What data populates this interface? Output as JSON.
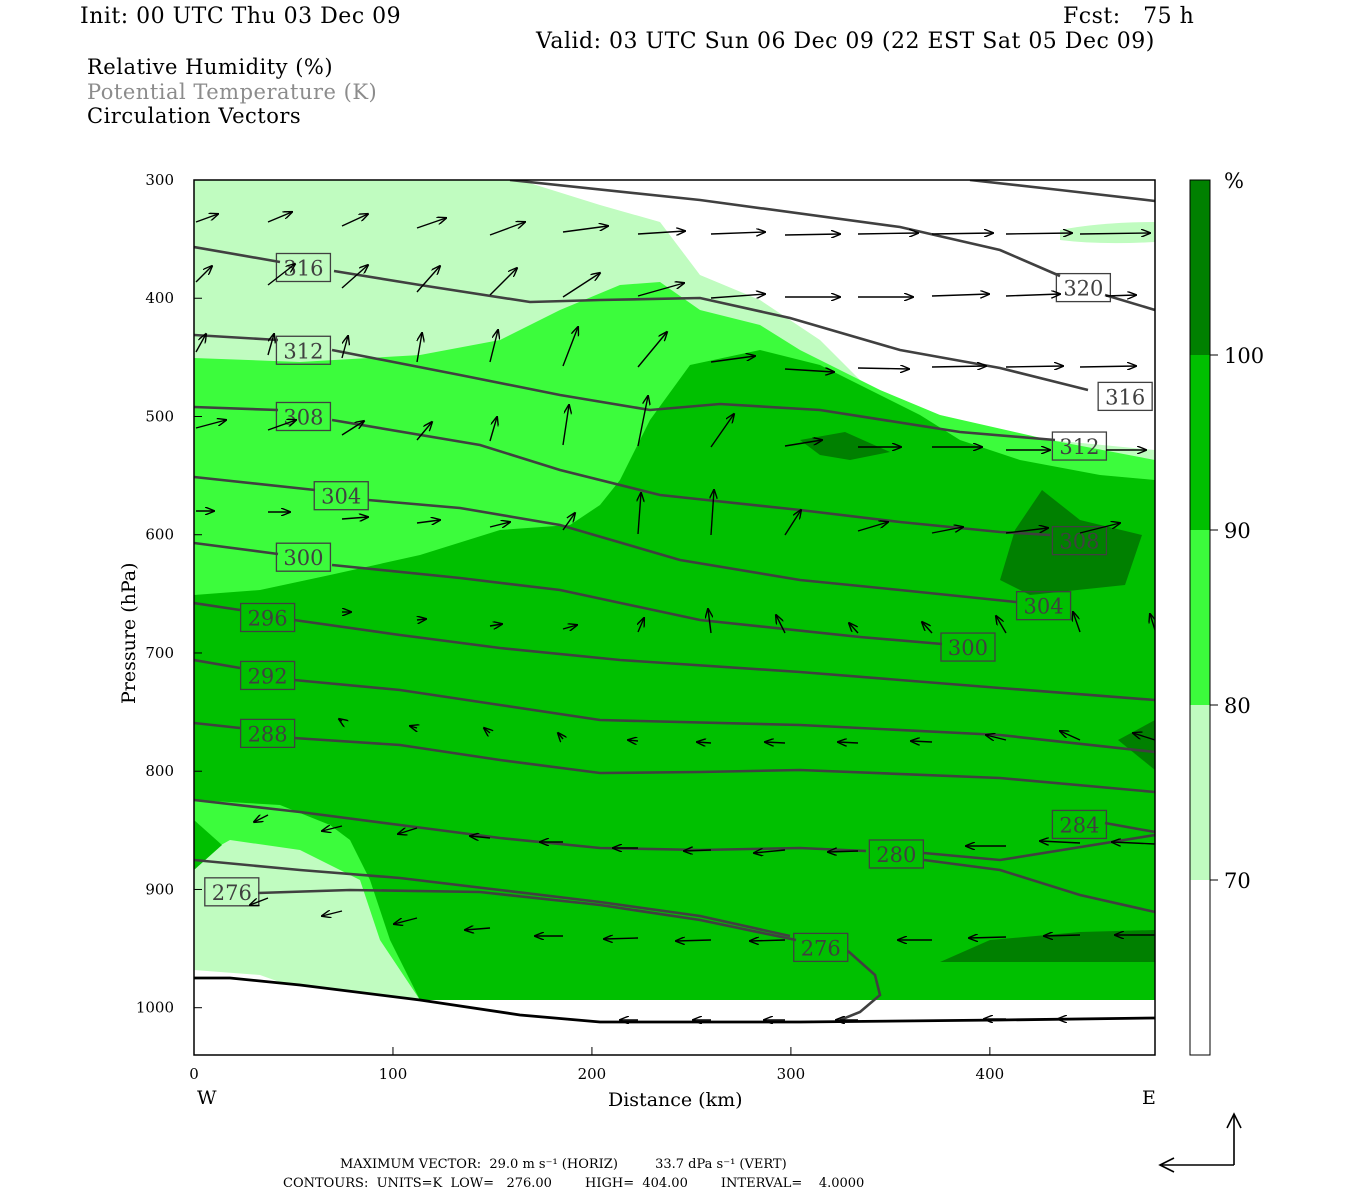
{
  "header": {
    "init": "Init: 00 UTC Thu 03 Dec 09",
    "fcst": "Fcst:   75 h",
    "valid": "Valid: 03 UTC Sun 06 Dec 09 (22 EST Sat 05 Dec 09)"
  },
  "legend": {
    "rh": "Relative Humidity (%)",
    "pt": "Potential Temperature (K)",
    "cv": "Circulation Vectors"
  },
  "footer": {
    "line1": "MAXIMUM VECTOR:  29.0 m s⁻¹ (HORIZ)         33.7 dPa s⁻¹ (VERT)",
    "line2": "CONTOURS:  UNITS=K  LOW=   276.00        HIGH=  404.00        INTERVAL=    4.0000"
  },
  "colors": {
    "rh70": "#c0fcc0",
    "rh80": "#3cfc3c",
    "rh90": "#00c000",
    "rh100": "#008000",
    "theta": "#404040"
  },
  "chart_data": {
    "type": "cross-section",
    "xlabel": "Distance (km)",
    "ylabel": "Pressure (hPa)",
    "x_ticks": [
      "0",
      "100",
      "200",
      "300",
      "400"
    ],
    "y_ticks": [
      "300",
      "400",
      "500",
      "600",
      "700",
      "800",
      "900",
      "1000"
    ],
    "xlim": [
      0,
      483
    ],
    "ylim": [
      300,
      1040
    ],
    "y_scale": "linear (reversed, pressure)",
    "left_label": "W",
    "right_label": "E",
    "colorbar": {
      "unit": "%",
      "levels": [
        "70",
        "80",
        "90",
        "100"
      ]
    },
    "theta_contour_labels": [
      {
        "label": "320",
        "x": 447,
        "p": 391
      },
      {
        "label": "316",
        "x": 55,
        "p": 374
      },
      {
        "label": "316",
        "x": 468,
        "p": 483
      },
      {
        "label": "312",
        "x": 55,
        "p": 444
      },
      {
        "label": "312",
        "x": 445,
        "p": 525
      },
      {
        "label": "308",
        "x": 55,
        "p": 500
      },
      {
        "label": "308",
        "x": 445,
        "p": 605
      },
      {
        "label": "304",
        "x": 74,
        "p": 567
      },
      {
        "label": "304",
        "x": 427,
        "p": 660
      },
      {
        "label": "300",
        "x": 55,
        "p": 619
      },
      {
        "label": "300",
        "x": 389,
        "p": 695
      },
      {
        "label": "296",
        "x": 37,
        "p": 670
      },
      {
        "label": "292",
        "x": 37,
        "p": 719
      },
      {
        "label": "288",
        "x": 37,
        "p": 768
      },
      {
        "label": "284",
        "x": 445,
        "p": 845
      },
      {
        "label": "280",
        "x": 353,
        "p": 870
      },
      {
        "label": "276",
        "x": 19,
        "p": 902
      },
      {
        "label": "276",
        "x": 315,
        "p": 949
      }
    ],
    "theta_range": {
      "low": 276.0,
      "high": 404.0,
      "interval": 4.0
    },
    "max_vector": {
      "horiz": "29.0 m s-1",
      "vert": "33.7 dPa s-1"
    }
  }
}
